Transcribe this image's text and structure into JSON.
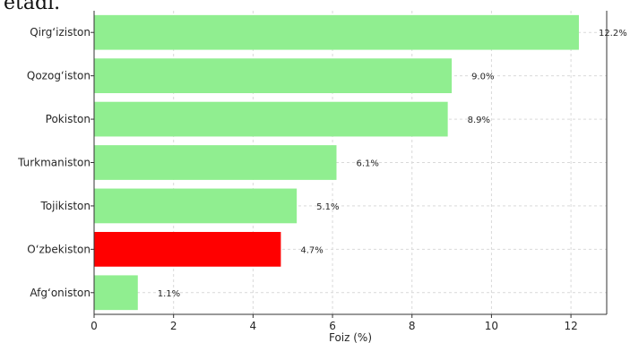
{
  "page": {
    "top_text": "etadi."
  },
  "chart_data": {
    "type": "bar",
    "orientation": "horizontal",
    "categories": [
      "Qirg‘iziston",
      "Qozog‘iston",
      "Pokiston",
      "Turkmaniston",
      "Tojikiston",
      "O‘zbekiston",
      "Afg‘oniston"
    ],
    "values": [
      12.2,
      9.0,
      8.9,
      6.1,
      5.1,
      4.7,
      1.1
    ],
    "data_labels": [
      "12.2%",
      "9.0%",
      "8.9%",
      "6.1%",
      "5.1%",
      "4.7%",
      "1.1%"
    ],
    "highlight": "O‘zbekiston",
    "colors": {
      "bar": "#90ee90",
      "highlight": "#ff0000"
    },
    "xlabel": "Foiz (%)",
    "ylabel": "",
    "title": "",
    "xlim": [
      0,
      12.9
    ],
    "xticks": [
      0,
      2,
      4,
      6,
      8,
      10,
      12
    ],
    "grid": true
  }
}
